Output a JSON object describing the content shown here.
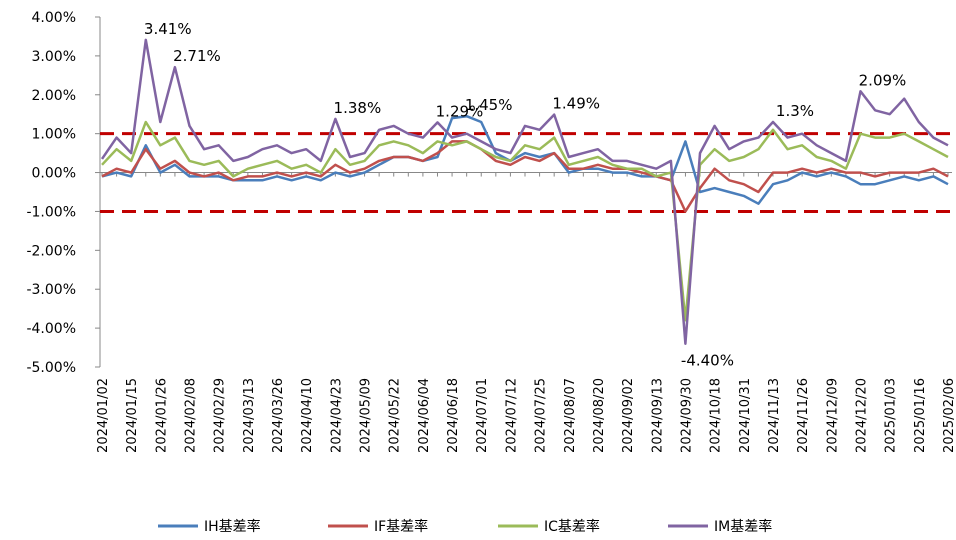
{
  "chart_data": {
    "type": "line",
    "categories": [
      "2024/01/02",
      null,
      "2024/01/15",
      null,
      "2024/01/26",
      null,
      "2024/02/08",
      null,
      "2024/02/29",
      null,
      "2024/03/13",
      null,
      "2024/03/26",
      null,
      "2024/04/10",
      null,
      "2024/04/23",
      null,
      "2024/05/09",
      null,
      "2024/05/22",
      null,
      "2024/06/04",
      null,
      "2024/06/18",
      null,
      "2024/07/01",
      null,
      "2024/07/12",
      null,
      "2024/07/25",
      null,
      "2024/08/07",
      null,
      "2024/08/20",
      null,
      "2024/09/02",
      null,
      "2024/09/13",
      null,
      "2024/09/30",
      null,
      "2024/10/18",
      null,
      "2024/10/31",
      null,
      "2024/11/13",
      null,
      "2024/11/26",
      null,
      "2024/12/09",
      null,
      "2024/12/20",
      null,
      "2025/01/03",
      null,
      "2025/01/16",
      null,
      "2025/02/06"
    ],
    "series": [
      {
        "name": "IH基差率",
        "color": "#4a7ebb",
        "values": [
          -0.1,
          0.0,
          -0.1,
          0.7,
          0.0,
          0.2,
          -0.1,
          -0.1,
          -0.1,
          -0.2,
          -0.2,
          -0.2,
          -0.1,
          -0.2,
          -0.1,
          -0.2,
          0.0,
          -0.1,
          0.0,
          0.2,
          0.4,
          0.4,
          0.3,
          0.4,
          1.4,
          1.45,
          1.3,
          0.5,
          0.3,
          0.5,
          0.4,
          0.5,
          0.0,
          0.1,
          0.1,
          0.0,
          0.0,
          -0.1,
          -0.1,
          -0.2,
          0.8,
          -0.5,
          -0.4,
          -0.5,
          -0.6,
          -0.8,
          -0.3,
          -0.2,
          0.0,
          -0.1,
          0.0,
          -0.1,
          -0.3,
          -0.3,
          -0.2,
          -0.1,
          -0.2,
          -0.1,
          -0.3
        ],
        "value_labels": [
          null,
          null,
          null,
          null,
          null,
          null,
          null,
          null,
          null,
          null,
          null,
          null,
          null,
          null,
          null,
          null,
          null,
          null,
          null,
          null,
          null,
          null,
          null,
          null,
          null,
          "1.45%",
          null,
          null,
          null,
          null,
          null,
          null,
          null,
          null,
          null,
          null,
          null,
          null,
          null,
          null,
          null,
          null,
          null,
          null,
          null,
          null,
          null,
          null,
          null,
          null,
          null,
          null,
          null,
          null,
          null,
          null,
          null,
          null,
          null
        ]
      },
      {
        "name": "IF基差率",
        "color": "#c0504d",
        "values": [
          -0.1,
          0.1,
          0.0,
          0.6,
          0.1,
          0.3,
          0.0,
          -0.1,
          0.0,
          -0.2,
          -0.1,
          -0.1,
          0.0,
          -0.1,
          0.0,
          -0.1,
          0.2,
          0.0,
          0.1,
          0.3,
          0.4,
          0.4,
          0.3,
          0.5,
          0.8,
          0.8,
          0.6,
          0.3,
          0.2,
          0.4,
          0.3,
          0.5,
          0.1,
          0.1,
          0.2,
          0.1,
          0.1,
          0.0,
          -0.1,
          -0.2,
          -1.0,
          -0.4,
          0.1,
          -0.2,
          -0.3,
          -0.5,
          0.0,
          0.0,
          0.1,
          0.0,
          0.1,
          0.0,
          0.0,
          -0.1,
          0.0,
          0.0,
          0.0,
          0.1,
          -0.1
        ]
      },
      {
        "name": "IC基差率",
        "color": "#9bbb59",
        "values": [
          0.2,
          0.6,
          0.3,
          1.3,
          0.7,
          0.9,
          0.3,
          0.2,
          0.3,
          -0.1,
          0.1,
          0.2,
          0.3,
          0.1,
          0.2,
          0.0,
          0.6,
          0.2,
          0.3,
          0.7,
          0.8,
          0.7,
          0.5,
          0.8,
          0.7,
          0.8,
          0.6,
          0.4,
          0.3,
          0.7,
          0.6,
          0.9,
          0.2,
          0.3,
          0.4,
          0.2,
          0.1,
          0.1,
          -0.1,
          0.0,
          -3.8,
          0.2,
          0.6,
          0.3,
          0.4,
          0.6,
          1.1,
          0.6,
          0.7,
          0.4,
          0.3,
          0.1,
          1.0,
          0.9,
          0.9,
          1.0,
          0.8,
          0.6,
          0.4
        ]
      },
      {
        "name": "IM基差率",
        "color": "#8064a2",
        "values": [
          0.35,
          0.9,
          0.5,
          3.41,
          1.3,
          2.71,
          1.2,
          0.6,
          0.7,
          0.3,
          0.4,
          0.6,
          0.7,
          0.5,
          0.6,
          0.3,
          1.38,
          0.4,
          0.5,
          1.1,
          1.2,
          1.0,
          0.9,
          1.29,
          0.9,
          1.0,
          0.8,
          0.6,
          0.5,
          1.2,
          1.1,
          1.49,
          0.4,
          0.5,
          0.6,
          0.3,
          0.3,
          0.2,
          0.1,
          0.3,
          -4.4,
          0.5,
          1.2,
          0.6,
          0.8,
          0.9,
          1.3,
          0.9,
          1.0,
          0.7,
          0.5,
          0.3,
          2.09,
          1.6,
          1.5,
          1.9,
          1.3,
          0.9,
          0.7
        ],
        "value_labels": [
          null,
          null,
          null,
          "3.41%",
          null,
          "2.71%",
          null,
          null,
          null,
          null,
          null,
          null,
          null,
          null,
          null,
          null,
          "1.38%",
          null,
          null,
          null,
          null,
          null,
          null,
          "1.29%",
          null,
          null,
          null,
          null,
          null,
          null,
          null,
          "1.49%",
          null,
          null,
          null,
          null,
          null,
          null,
          null,
          null,
          "-4.40%",
          null,
          null,
          null,
          null,
          null,
          "1.3%",
          null,
          null,
          null,
          null,
          null,
          "2.09%",
          null,
          null,
          null,
          null,
          null,
          null
        ]
      }
    ],
    "ylim": [
      -5,
      4
    ],
    "yticks": [
      {
        "value": -5,
        "label": "-5.00%"
      },
      {
        "value": -4,
        "label": "-4.00%"
      },
      {
        "value": -3,
        "label": "-3.00%"
      },
      {
        "value": -2,
        "label": "-2.00%"
      },
      {
        "value": -1,
        "label": "-1.00%"
      },
      {
        "value": 0,
        "label": "0.00%"
      },
      {
        "value": 1,
        "label": "1.00%"
      },
      {
        "value": 2,
        "label": "2.00%"
      },
      {
        "value": 3,
        "label": "3.00%"
      },
      {
        "value": 4,
        "label": "4.00%"
      }
    ],
    "reference_lines": [
      {
        "value": 1,
        "color": "#c00000"
      },
      {
        "value": -1,
        "color": "#c00000"
      }
    ],
    "grid": false,
    "legend": "bottom"
  }
}
